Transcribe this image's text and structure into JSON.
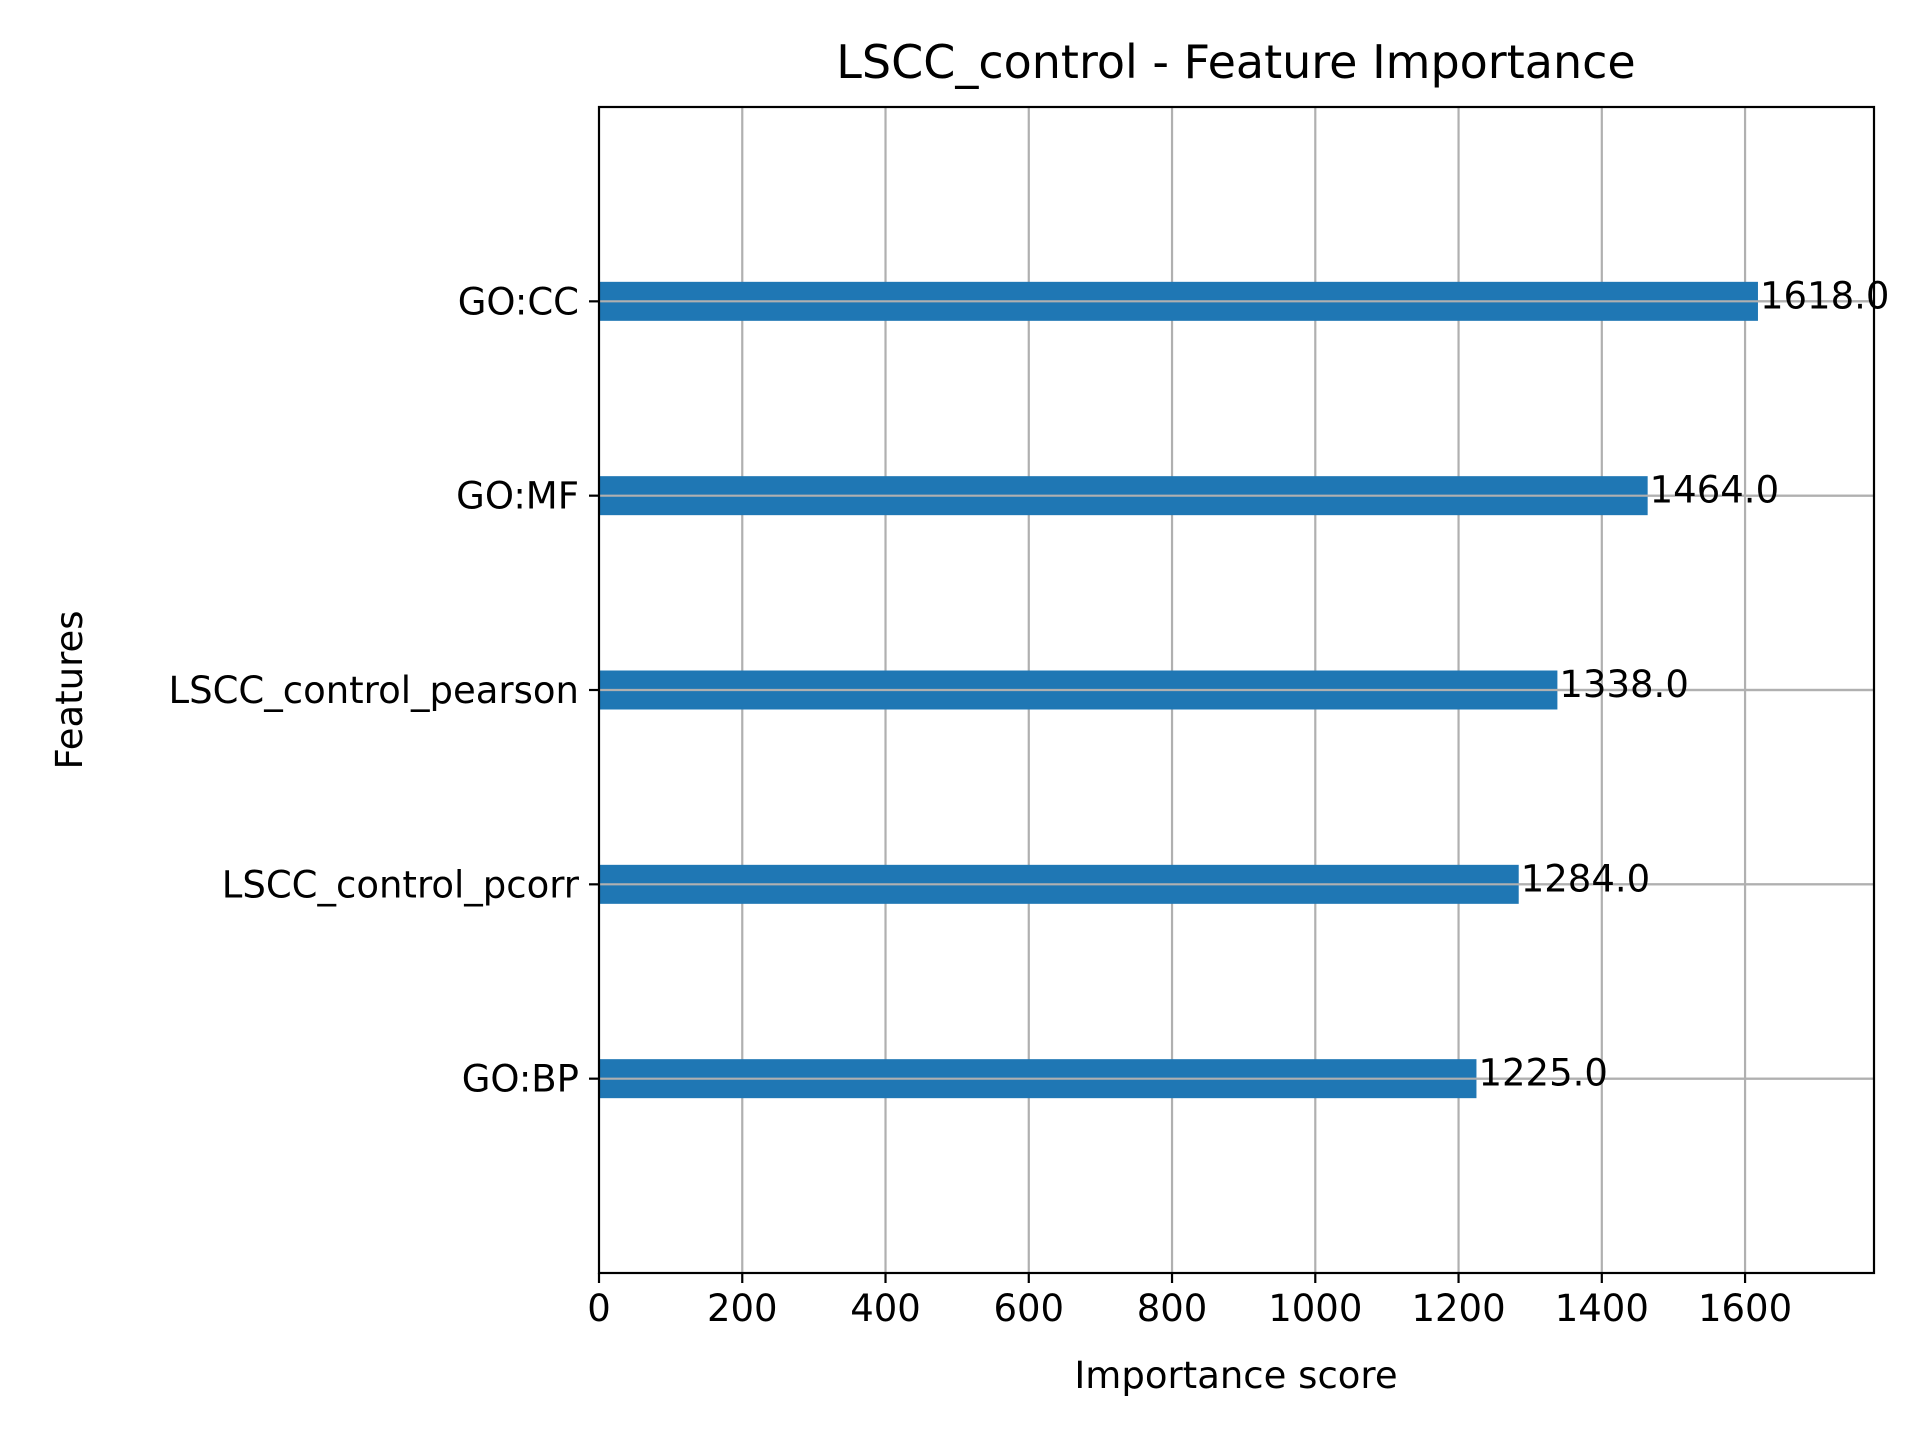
{
  "chart_data": {
    "type": "bar",
    "orientation": "horizontal",
    "title": "LSCC_control - Feature Importance",
    "xlabel": "Importance score",
    "ylabel": "Features",
    "categories": [
      "GO:BP",
      "LSCC_control_pcorr",
      "LSCC_control_pearson",
      "GO:MF",
      "GO:CC"
    ],
    "values": [
      1225.0,
      1284.0,
      1338.0,
      1464.0,
      1618.0
    ],
    "data_labels": [
      "1225.0",
      "1284.0",
      "1338.0",
      "1464.0",
      "1618.0"
    ],
    "xlim": [
      0,
      1780
    ],
    "xticks": [
      0,
      200,
      400,
      600,
      800,
      1000,
      1200,
      1400,
      1600
    ],
    "xtick_labels": [
      "0",
      "200",
      "400",
      "600",
      "800",
      "1000",
      "1200",
      "1400",
      "1600"
    ],
    "grid": true,
    "bar_color": "#1f77b4",
    "grid_color": "#b0b0b0"
  }
}
